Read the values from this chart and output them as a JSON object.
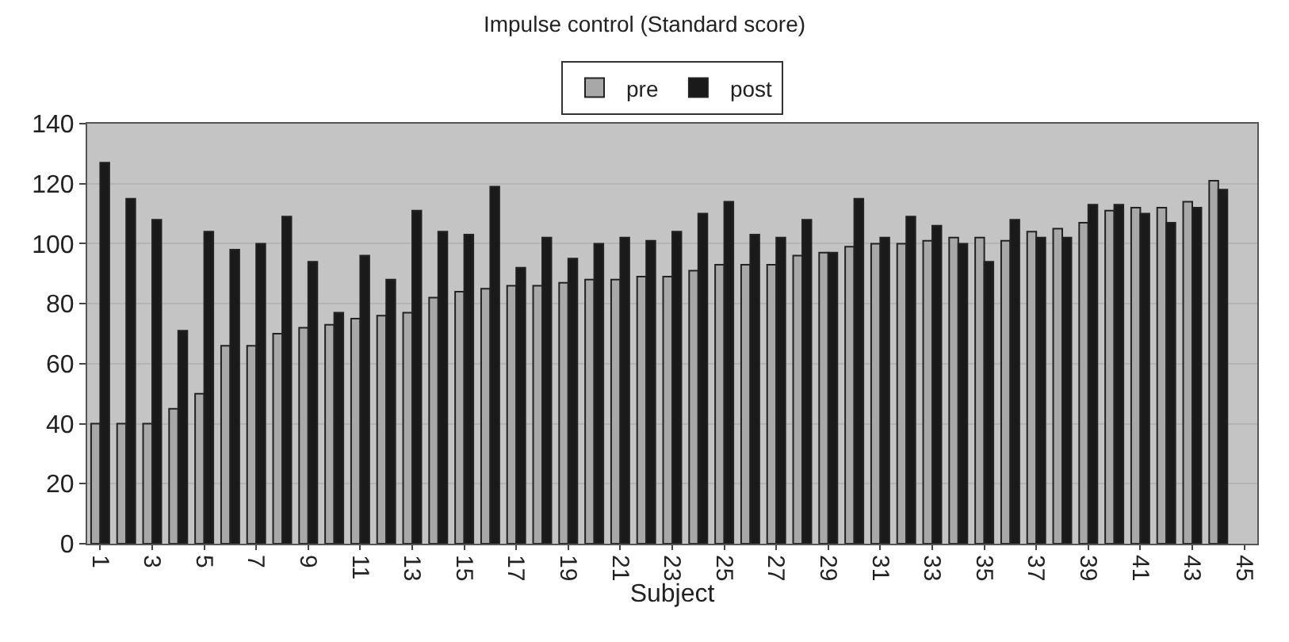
{
  "chart_data": {
    "type": "bar",
    "title": "Impulse control (Standard score)",
    "xlabel": "Subject",
    "categories": [
      "1",
      null,
      "3",
      null,
      "5",
      null,
      "7",
      null,
      "9",
      null,
      "11",
      null,
      "13",
      null,
      "15",
      null,
      "17",
      null,
      "19",
      null,
      "21",
      null,
      "23",
      null,
      "25",
      null,
      "27",
      null,
      "29",
      null,
      "31",
      null,
      "33",
      null,
      "35",
      null,
      "37",
      null,
      "39",
      null,
      "41",
      null,
      "43",
      null,
      "45"
    ],
    "series": [
      {
        "name": "pre",
        "color": "#a8a8a8",
        "values": [
          40,
          40,
          40,
          45,
          50,
          66,
          66,
          70,
          72,
          73,
          75,
          76,
          77,
          82,
          84,
          85,
          86,
          86,
          87,
          88,
          88,
          89,
          89,
          91,
          93,
          93,
          93,
          96,
          97,
          99,
          100,
          100,
          101,
          102,
          102,
          101,
          104,
          105,
          107,
          111,
          112,
          112,
          114,
          121,
          null
        ]
      },
      {
        "name": "post",
        "color": "#1a1a1a",
        "values": [
          127,
          115,
          108,
          71,
          104,
          98,
          100,
          109,
          94,
          77,
          96,
          88,
          111,
          104,
          103,
          119,
          92,
          102,
          95,
          100,
          102,
          101,
          104,
          110,
          114,
          103,
          102,
          108,
          97,
          115,
          102,
          109,
          106,
          100,
          94,
          108,
          102,
          102,
          113,
          113,
          110,
          107,
          112,
          118,
          null
        ]
      }
    ],
    "ylim": [
      0,
      140
    ],
    "yticks": [
      0,
      20,
      40,
      60,
      80,
      100,
      120,
      140
    ],
    "grid": "y",
    "legend": "top"
  }
}
